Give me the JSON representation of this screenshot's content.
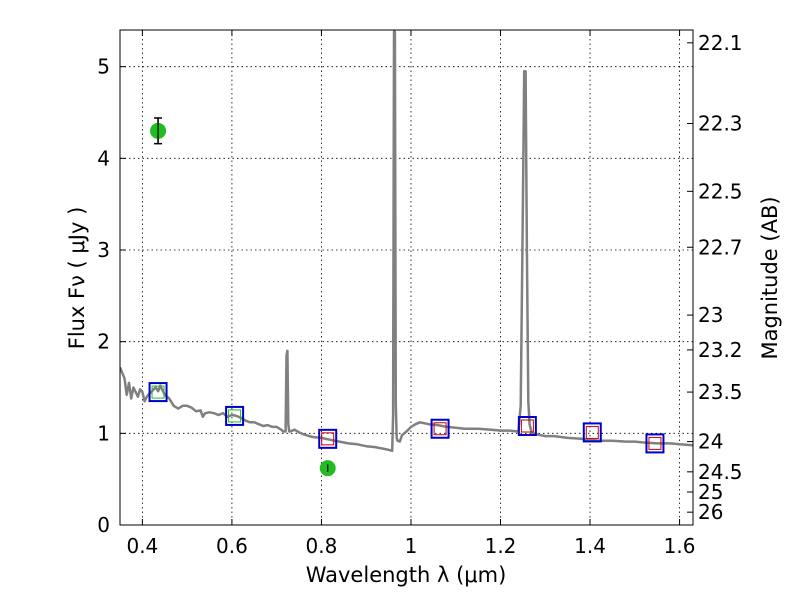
{
  "chart_data": {
    "type": "scatter",
    "xlabel": "Wavelength  λ (μm)",
    "ylabel": "Flux  Fν  ( μJy )",
    "y2label": "Magnitude (AB)",
    "xlim": [
      0.35,
      1.63
    ],
    "ylim": [
      0,
      5.4
    ],
    "grid": true,
    "x_ticks": [
      0.4,
      0.6,
      0.8,
      1.0,
      1.2,
      1.4,
      1.6
    ],
    "x_tick_labels": [
      "0.4",
      "0.6",
      "0.8",
      "1",
      "1.2",
      "1.4",
      "1.6"
    ],
    "y_ticks": [
      0,
      1,
      2,
      3,
      4,
      5
    ],
    "y_tick_labels": [
      "0",
      "1",
      "2",
      "3",
      "4",
      "5"
    ],
    "y2_ticks": [
      {
        "label": "22.1",
        "flux": 5.26
      },
      {
        "label": "22.3",
        "flux": 4.38
      },
      {
        "label": "22.5",
        "flux": 3.64
      },
      {
        "label": "22.7",
        "flux": 3.03
      },
      {
        "label": "23",
        "flux": 2.29
      },
      {
        "label": "23.2",
        "flux": 1.91
      },
      {
        "label": "23.5",
        "flux": 1.45
      },
      {
        "label": "24",
        "flux": 0.91
      },
      {
        "label": "24.5",
        "flux": 0.58
      },
      {
        "label": "25",
        "flux": 0.36
      },
      {
        "label": "26",
        "flux": 0.14
      }
    ],
    "colors": {
      "model": "#808080",
      "photometry": "#22bb22",
      "model_box": "#0000cc",
      "inner_box": "#cc0000"
    },
    "series": [
      {
        "kind": "model-spectrum",
        "x": [
          0.35,
          0.36,
          0.365,
          0.37,
          0.375,
          0.38,
          0.385,
          0.39,
          0.395,
          0.4,
          0.405,
          0.41,
          0.415,
          0.42,
          0.425,
          0.43,
          0.435,
          0.44,
          0.445,
          0.45,
          0.455,
          0.46,
          0.47,
          0.48,
          0.49,
          0.5,
          0.51,
          0.52,
          0.53,
          0.535,
          0.54,
          0.55,
          0.56,
          0.57,
          0.58,
          0.59,
          0.6,
          0.61,
          0.62,
          0.63,
          0.64,
          0.65,
          0.66,
          0.67,
          0.68,
          0.69,
          0.7,
          0.71,
          0.715,
          0.72,
          0.722,
          0.724,
          0.726,
          0.728,
          0.73,
          0.74,
          0.75,
          0.76,
          0.78,
          0.8,
          0.82,
          0.84,
          0.86,
          0.88,
          0.9,
          0.92,
          0.94,
          0.95,
          0.958,
          0.96,
          0.962,
          0.964,
          0.966,
          0.968,
          0.97,
          0.975,
          0.98,
          0.99,
          1.0,
          1.01,
          1.02,
          1.04,
          1.06,
          1.08,
          1.1,
          1.12,
          1.15,
          1.18,
          1.2,
          1.22,
          1.24,
          1.245,
          1.25,
          1.253,
          1.256,
          1.259,
          1.262,
          1.265,
          1.27,
          1.28,
          1.3,
          1.32,
          1.35,
          1.38,
          1.4,
          1.42,
          1.45,
          1.48,
          1.5,
          1.52,
          1.55,
          1.58,
          1.6,
          1.63
        ],
        "y": [
          1.72,
          1.6,
          1.42,
          1.55,
          1.38,
          1.5,
          1.45,
          1.4,
          1.48,
          1.45,
          1.35,
          1.4,
          1.43,
          1.45,
          1.48,
          1.5,
          1.46,
          1.52,
          1.47,
          1.42,
          1.4,
          1.38,
          1.3,
          1.27,
          1.3,
          1.3,
          1.28,
          1.24,
          1.25,
          1.18,
          1.22,
          1.23,
          1.22,
          1.2,
          1.22,
          1.18,
          1.2,
          1.19,
          1.17,
          1.14,
          1.12,
          1.12,
          1.1,
          1.08,
          1.09,
          1.07,
          1.07,
          1.04,
          1.02,
          1.02,
          1.85,
          1.9,
          1.1,
          1.02,
          1.02,
          1.04,
          1.01,
          0.99,
          0.96,
          0.95,
          0.93,
          0.91,
          0.89,
          0.88,
          0.86,
          0.85,
          0.83,
          0.82,
          0.81,
          1.2,
          5.38,
          5.38,
          1.3,
          0.95,
          0.92,
          0.91,
          0.98,
          1.02,
          1.07,
          1.1,
          1.12,
          1.1,
          1.09,
          1.07,
          1.06,
          1.05,
          1.05,
          1.04,
          1.03,
          1.03,
          1.02,
          1.3,
          3.5,
          4.95,
          4.95,
          3.0,
          1.35,
          1.1,
          1.0,
          0.99,
          0.97,
          0.97,
          0.95,
          0.94,
          0.93,
          0.92,
          0.92,
          0.91,
          0.91,
          0.9,
          0.89,
          0.89,
          0.88,
          0.87
        ]
      },
      {
        "kind": "photometry",
        "points": [
          {
            "x": 0.435,
            "y": 4.3,
            "err": 0.14
          },
          {
            "x": 0.814,
            "y": 0.62,
            "err": 0.04
          }
        ]
      },
      {
        "kind": "model-bandpass",
        "points": [
          {
            "x": 0.435,
            "y": 1.45,
            "inner": "green"
          },
          {
            "x": 0.606,
            "y": 1.19,
            "inner": "green"
          },
          {
            "x": 0.814,
            "y": 0.94,
            "inner": "red"
          },
          {
            "x": 1.065,
            "y": 1.05,
            "inner": "red"
          },
          {
            "x": 1.26,
            "y": 1.08,
            "inner": "red"
          },
          {
            "x": 1.405,
            "y": 1.01,
            "inner": "red"
          },
          {
            "x": 1.545,
            "y": 0.89,
            "inner": "red"
          }
        ]
      }
    ]
  }
}
